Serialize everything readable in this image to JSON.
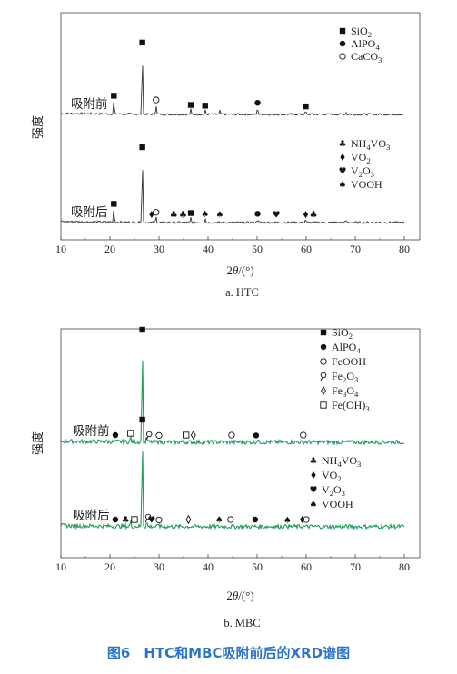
{
  "caption": "图6　HTC和MBC吸附前后的XRD谱图",
  "chart_data": [
    {
      "type": "line",
      "panel_label": "a. HTC",
      "ylabel": "强度",
      "xlabel_pre": "2",
      "xlabel_theta": "θ",
      "xlabel_post": "/(°)",
      "xlim": [
        10,
        80
      ],
      "x_ticks": [
        "10",
        "20",
        "30",
        "40",
        "50",
        "60",
        "70",
        "80"
      ],
      "line_color": "#333333",
      "series": [
        {
          "name": "吸附前",
          "peaks": [
            {
              "x": 20.8,
              "h": 0.2
            },
            {
              "x": 26.6,
              "h": 0.95
            },
            {
              "x": 29.4,
              "h": 0.14
            },
            {
              "x": 36.5,
              "h": 0.07
            },
            {
              "x": 39.4,
              "h": 0.06
            },
            {
              "x": 42.4,
              "h": 0.05
            },
            {
              "x": 50.1,
              "h": 0.1
            },
            {
              "x": 59.9,
              "h": 0.05
            },
            {
              "x": 68.1,
              "h": 0.03
            }
          ],
          "markers": [
            {
              "x": 20.8,
              "sym": "square"
            },
            {
              "x": 26.6,
              "sym": "square"
            },
            {
              "x": 29.4,
              "sym": "circle-open"
            },
            {
              "x": 36.5,
              "sym": "square"
            },
            {
              "x": 39.4,
              "sym": "square"
            },
            {
              "x": 50.1,
              "sym": "circle"
            },
            {
              "x": 59.9,
              "sym": "square"
            }
          ]
        },
        {
          "name": "吸附后",
          "peaks": [
            {
              "x": 20.8,
              "h": 0.2
            },
            {
              "x": 26.6,
              "h": 1.0
            },
            {
              "x": 29.4,
              "h": 0.08
            },
            {
              "x": 36.5,
              "h": 0.07
            },
            {
              "x": 39.4,
              "h": 0.06
            },
            {
              "x": 50.1,
              "h": 0.06
            },
            {
              "x": 59.9,
              "h": 0.05
            },
            {
              "x": 68.1,
              "h": 0.03
            }
          ],
          "markers": [
            {
              "x": 20.8,
              "sym": "square"
            },
            {
              "x": 26.6,
              "sym": "square"
            },
            {
              "x": 29.4,
              "sym": "circle-open"
            },
            {
              "x": 28.5,
              "sym": "diamond"
            },
            {
              "x": 33.0,
              "sym": "club"
            },
            {
              "x": 34.9,
              "sym": "club"
            },
            {
              "x": 36.5,
              "sym": "square"
            },
            {
              "x": 39.4,
              "sym": "spade"
            },
            {
              "x": 42.4,
              "sym": "spade"
            },
            {
              "x": 50.1,
              "sym": "circle"
            },
            {
              "x": 53.9,
              "sym": "heart"
            },
            {
              "x": 59.9,
              "sym": "diamond"
            },
            {
              "x": 61.5,
              "sym": "club"
            }
          ]
        }
      ],
      "legend_top": [
        {
          "sym": "square",
          "label": "SiO",
          "sub": "2",
          "tail": ""
        },
        {
          "sym": "circle",
          "label": "AlPO",
          "sub": "4",
          "tail": ""
        },
        {
          "sym": "circle-open",
          "label": "CaCO",
          "sub": "3",
          "tail": ""
        }
      ],
      "legend_bottom": [
        {
          "sym": "club",
          "label": "NH",
          "sub": "4",
          "tail": "VO",
          "sub2": "3"
        },
        {
          "sym": "diamond",
          "label": "VO",
          "sub": "2",
          "tail": ""
        },
        {
          "sym": "heart",
          "label": "V",
          "sub": "2",
          "tail": "O",
          "sub2": "3"
        },
        {
          "sym": "spade",
          "label": "VOOH",
          "sub": "",
          "tail": ""
        }
      ]
    },
    {
      "type": "line",
      "panel_label": "b. MBC",
      "ylabel": "强度",
      "xlabel_pre": "2",
      "xlabel_theta": "θ",
      "xlabel_post": "/(°)",
      "xlim": [
        10,
        80
      ],
      "x_ticks": [
        "10",
        "20",
        "30",
        "40",
        "50",
        "60",
        "70",
        "80"
      ],
      "line_color": "#1f9a5a",
      "series": [
        {
          "name": "吸附前",
          "peaks": [
            {
              "x": 26.6,
              "h": 1.0
            },
            {
              "x": 24.2,
              "h": 0.05
            },
            {
              "x": 27.5,
              "h": 0.05
            },
            {
              "x": 30.0,
              "h": 0.03
            },
            {
              "x": 50.1,
              "h": 0.03
            }
          ],
          "markers": [
            {
              "x": 21.1,
              "sym": "circle"
            },
            {
              "x": 24.2,
              "sym": "square-open"
            },
            {
              "x": 26.6,
              "sym": "square"
            },
            {
              "x": 28.0,
              "sym": "circle-open-stem"
            },
            {
              "x": 30.0,
              "sym": "circle-open"
            },
            {
              "x": 35.5,
              "sym": "square-open"
            },
            {
              "x": 37.0,
              "sym": "diamond-open"
            },
            {
              "x": 44.8,
              "sym": "circle-open"
            },
            {
              "x": 49.8,
              "sym": "circle"
            },
            {
              "x": 59.4,
              "sym": "circle-open"
            }
          ]
        },
        {
          "name": "吸附后",
          "peaks": [
            {
              "x": 26.6,
              "h": 0.95
            },
            {
              "x": 24.2,
              "h": 0.05
            },
            {
              "x": 27.5,
              "h": 0.05
            },
            {
              "x": 30.0,
              "h": 0.03
            },
            {
              "x": 56.0,
              "h": 0.03
            }
          ],
          "markers": [
            {
              "x": 21.1,
              "sym": "circle"
            },
            {
              "x": 23.2,
              "sym": "club"
            },
            {
              "x": 25.0,
              "sym": "square-open"
            },
            {
              "x": 26.6,
              "sym": "square"
            },
            {
              "x": 27.8,
              "sym": "circle-open-stem"
            },
            {
              "x": 28.5,
              "sym": "heart"
            },
            {
              "x": 30.0,
              "sym": "circle-open"
            },
            {
              "x": 36.0,
              "sym": "diamond-open"
            },
            {
              "x": 42.3,
              "sym": "spade"
            },
            {
              "x": 44.6,
              "sym": "circle-open"
            },
            {
              "x": 49.6,
              "sym": "circle"
            },
            {
              "x": 56.2,
              "sym": "spade"
            },
            {
              "x": 59.2,
              "sym": "diamond"
            },
            {
              "x": 60.0,
              "sym": "circle-open"
            }
          ]
        }
      ],
      "legend_top": [
        {
          "sym": "square",
          "label": "SiO",
          "sub": "2",
          "tail": ""
        },
        {
          "sym": "circle",
          "label": "AlPO",
          "sub": "4",
          "tail": ""
        },
        {
          "sym": "circle-open",
          "label": "FeOOH",
          "sub": "",
          "tail": ""
        },
        {
          "sym": "circle-open-stem",
          "label": "Fe",
          "sub": "2",
          "tail": "O",
          "sub2": "3"
        },
        {
          "sym": "diamond-open",
          "label": "Fe",
          "sub": "3",
          "tail": "O",
          "sub2": "4"
        },
        {
          "sym": "square-open",
          "label": "Fe(OH)",
          "sub": "3",
          "tail": ""
        }
      ],
      "legend_bottom": [
        {
          "sym": "club",
          "label": "NH",
          "sub": "4",
          "tail": "VO",
          "sub2": "3"
        },
        {
          "sym": "diamond",
          "label": "VO",
          "sub": "2",
          "tail": ""
        },
        {
          "sym": "heart",
          "label": "V",
          "sub": "2",
          "tail": "O",
          "sub2": "3"
        },
        {
          "sym": "spade",
          "label": "VOOH",
          "sub": "",
          "tail": ""
        }
      ]
    }
  ]
}
